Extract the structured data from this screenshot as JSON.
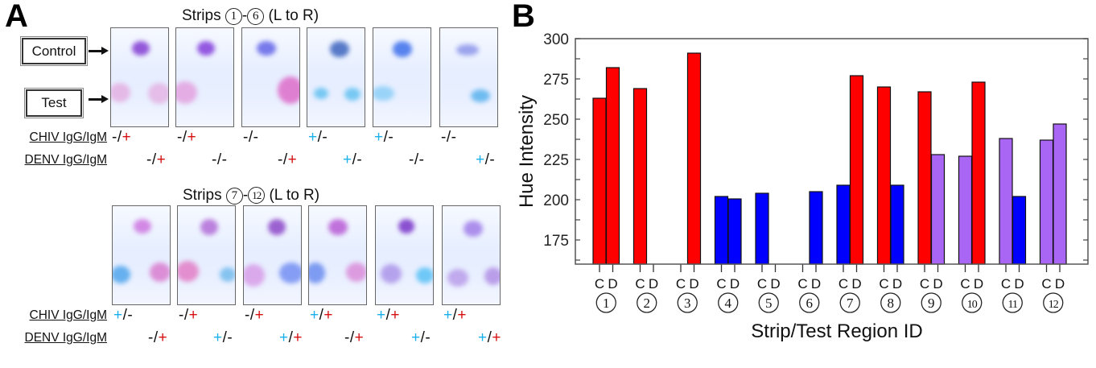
{
  "panel_a": {
    "letter": "A",
    "labels": {
      "control": "Control",
      "test": "Test"
    },
    "rows": [
      {
        "title_prefix": "Strips ",
        "title_from": "1",
        "title_dash": "-",
        "title_to": "6",
        "title_suffix": " (L to R)",
        "strips": [
          {
            "id": "1",
            "chiv": [
              "-",
              "+"
            ],
            "denv": [
              "-",
              "+"
            ]
          },
          {
            "id": "2",
            "chiv": [
              "-",
              "+"
            ],
            "denv": [
              "-",
              "-"
            ]
          },
          {
            "id": "3",
            "chiv": [
              "-",
              "-"
            ],
            "denv": [
              "-",
              "+"
            ]
          },
          {
            "id": "4",
            "chiv": [
              "+",
              "-"
            ],
            "denv": [
              "+",
              "-"
            ]
          },
          {
            "id": "5",
            "chiv": [
              "+",
              "-"
            ],
            "denv": [
              "-",
              "-"
            ]
          },
          {
            "id": "6",
            "chiv": [
              "-",
              "-"
            ],
            "denv": [
              "+",
              "-"
            ]
          }
        ]
      },
      {
        "title_prefix": "Strips ",
        "title_from": "7",
        "title_dash": "-",
        "title_to": "12",
        "title_suffix": " (L to R)",
        "strips": [
          {
            "id": "7",
            "chiv": [
              "+",
              "-"
            ],
            "denv": [
              "-",
              "+"
            ]
          },
          {
            "id": "8",
            "chiv": [
              "-",
              "+"
            ],
            "denv": [
              "+",
              "-"
            ]
          },
          {
            "id": "9",
            "chiv": [
              "-",
              "+"
            ],
            "denv": [
              "+",
              "+"
            ]
          },
          {
            "id": "10",
            "chiv": [
              "+",
              "+"
            ],
            "denv": [
              "-",
              "+"
            ]
          },
          {
            "id": "11",
            "chiv": [
              "+",
              "+"
            ],
            "denv": [
              "+",
              "-"
            ]
          },
          {
            "id": "12",
            "chiv": [
              "+",
              "+"
            ],
            "denv": [
              "+",
              "+"
            ]
          }
        ]
      }
    ],
    "test_labels": {
      "chiv": "CHIV IgG/IgM",
      "denv": "DENV IgG/IgM"
    },
    "separator": "/",
    "colors": {
      "igg_positive": "#1ab0ec",
      "igm_positive": "#d61010",
      "negative": "#111111"
    }
  },
  "chart_data": {
    "type": "bar",
    "panel_letter": "B",
    "title": "",
    "xlabel": "Strip/Test Region ID",
    "ylabel": "Hue Intensity",
    "ylim": [
      160,
      300
    ],
    "yticks": [
      175,
      200,
      225,
      250,
      275,
      300
    ],
    "grid": false,
    "legend": "none",
    "region_labels": [
      "C",
      "D"
    ],
    "categories": [
      "1",
      "2",
      "3",
      "4",
      "5",
      "6",
      "7",
      "8",
      "9",
      "10",
      "11",
      "12"
    ],
    "colors": {
      "red": "#ff0000",
      "blue": "#0000ff",
      "purple": "#a966f5"
    },
    "series": [
      {
        "name": "C",
        "values": [
          263,
          269,
          null,
          202,
          204,
          null,
          209,
          270,
          267,
          227,
          238,
          237
        ],
        "bar_colors": [
          "red",
          "red",
          null,
          "blue",
          "blue",
          null,
          "blue",
          "red",
          "red",
          "purple",
          "purple",
          "purple"
        ]
      },
      {
        "name": "D",
        "values": [
          282,
          null,
          291,
          200.5,
          null,
          205,
          277,
          209,
          228,
          273,
          202,
          247
        ],
        "bar_colors": [
          "red",
          null,
          "red",
          "blue",
          null,
          "blue",
          "red",
          "blue",
          "purple",
          "red",
          "blue",
          "purple"
        ]
      }
    ]
  }
}
